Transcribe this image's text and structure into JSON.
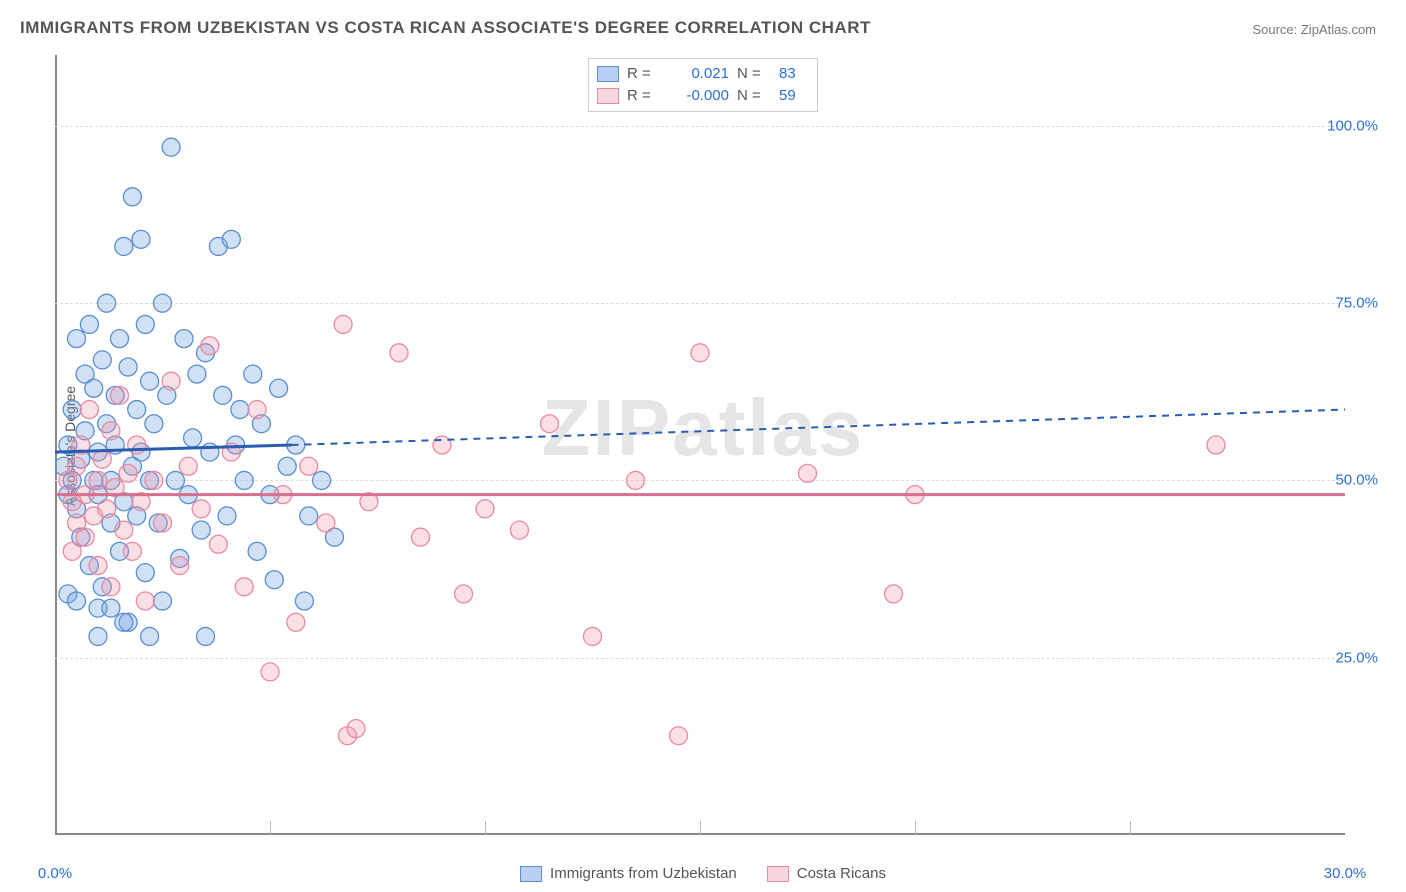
{
  "title": "IMMIGRANTS FROM UZBEKISTAN VS COSTA RICAN ASSOCIATE'S DEGREE CORRELATION CHART",
  "source": "Source: ZipAtlas.com",
  "watermark": "ZIPatlas",
  "y_axis_label": "Associate's Degree",
  "chart": {
    "type": "scatter",
    "xlim": [
      0,
      30
    ],
    "ylim": [
      0,
      110
    ],
    "x_ticks": [
      {
        "value": 0,
        "label": "0.0%"
      },
      {
        "value": 30,
        "label": "30.0%"
      }
    ],
    "x_minor_ticks": [
      5,
      10,
      15,
      20,
      25
    ],
    "y_ticks": [
      {
        "value": 25,
        "label": "25.0%"
      },
      {
        "value": 50,
        "label": "50.0%"
      },
      {
        "value": 75,
        "label": "75.0%"
      },
      {
        "value": 100,
        "label": "100.0%"
      }
    ],
    "background_color": "#ffffff",
    "grid_color": "#dddddd",
    "axis_color": "#888888",
    "tick_label_color": "#2a6fd6",
    "title_color": "#555555",
    "marker_radius": 9,
    "marker_stroke_width": 1.3,
    "series": [
      {
        "name": "Immigrants from Uzbekistan",
        "fill_color": "rgba(120,165,225,0.35)",
        "stroke_color": "#5a8ed0",
        "R": "0.021",
        "N": "83",
        "trend": {
          "y_start": 54,
          "y_end_solid_x": 5.5,
          "y_end_solid": 55,
          "y_end_dash": 60,
          "solid_color": "#2a5db0",
          "dash_color": "#2a5db0"
        },
        "points": [
          [
            0.2,
            52
          ],
          [
            0.3,
            48
          ],
          [
            0.3,
            55
          ],
          [
            0.4,
            60
          ],
          [
            0.4,
            50
          ],
          [
            0.5,
            70
          ],
          [
            0.5,
            46
          ],
          [
            0.6,
            53
          ],
          [
            0.6,
            42
          ],
          [
            0.7,
            65
          ],
          [
            0.7,
            57
          ],
          [
            0.8,
            72
          ],
          [
            0.8,
            38
          ],
          [
            0.9,
            63
          ],
          [
            0.9,
            50
          ],
          [
            1.0,
            54
          ],
          [
            1.0,
            48
          ],
          [
            1.1,
            67
          ],
          [
            1.1,
            35
          ],
          [
            1.2,
            58
          ],
          [
            1.2,
            75
          ],
          [
            1.3,
            50
          ],
          [
            1.3,
            44
          ],
          [
            1.4,
            62
          ],
          [
            1.4,
            55
          ],
          [
            1.5,
            70
          ],
          [
            1.5,
            40
          ],
          [
            1.6,
            83
          ],
          [
            1.6,
            47
          ],
          [
            1.7,
            66
          ],
          [
            1.7,
            30
          ],
          [
            1.8,
            52
          ],
          [
            1.8,
            90
          ],
          [
            1.9,
            60
          ],
          [
            1.9,
            45
          ],
          [
            2.0,
            84
          ],
          [
            2.0,
            54
          ],
          [
            2.1,
            72
          ],
          [
            2.1,
            37
          ],
          [
            2.2,
            64
          ],
          [
            2.2,
            50
          ],
          [
            2.3,
            58
          ],
          [
            2.4,
            44
          ],
          [
            2.5,
            75
          ],
          [
            2.5,
            33
          ],
          [
            2.6,
            62
          ],
          [
            2.7,
            97
          ],
          [
            2.8,
            50
          ],
          [
            2.9,
            39
          ],
          [
            3.0,
            70
          ],
          [
            3.1,
            48
          ],
          [
            3.2,
            56
          ],
          [
            3.3,
            65
          ],
          [
            3.4,
            43
          ],
          [
            3.5,
            68
          ],
          [
            3.6,
            54
          ],
          [
            3.8,
            83
          ],
          [
            3.9,
            62
          ],
          [
            4.0,
            45
          ],
          [
            4.1,
            84
          ],
          [
            4.2,
            55
          ],
          [
            4.3,
            60
          ],
          [
            4.4,
            50
          ],
          [
            4.6,
            65
          ],
          [
            4.7,
            40
          ],
          [
            4.8,
            58
          ],
          [
            5.0,
            48
          ],
          [
            5.1,
            36
          ],
          [
            5.2,
            63
          ],
          [
            5.4,
            52
          ],
          [
            5.6,
            55
          ],
          [
            5.8,
            33
          ],
          [
            5.9,
            45
          ],
          [
            6.2,
            50
          ],
          [
            6.5,
            42
          ],
          [
            0.3,
            34
          ],
          [
            0.5,
            33
          ],
          [
            1.0,
            32
          ],
          [
            1.3,
            32
          ],
          [
            1.6,
            30
          ],
          [
            1.0,
            28
          ],
          [
            2.2,
            28
          ],
          [
            3.5,
            28
          ]
        ]
      },
      {
        "name": "Costa Ricans",
        "fill_color": "rgba(240,150,170,0.3)",
        "stroke_color": "#e88aa0",
        "R": "-0.000",
        "N": "59",
        "trend": {
          "y_start": 48,
          "y_end_solid_x": 30,
          "y_end_solid": 48,
          "y_end_dash": 48,
          "solid_color": "#d6708c",
          "dash_color": "#d6708c"
        },
        "points": [
          [
            0.3,
            50
          ],
          [
            0.4,
            47
          ],
          [
            0.5,
            52
          ],
          [
            0.5,
            44
          ],
          [
            0.6,
            55
          ],
          [
            0.7,
            48
          ],
          [
            0.7,
            42
          ],
          [
            0.8,
            60
          ],
          [
            0.9,
            45
          ],
          [
            1.0,
            50
          ],
          [
            1.0,
            38
          ],
          [
            1.1,
            53
          ],
          [
            1.2,
            46
          ],
          [
            1.3,
            57
          ],
          [
            1.3,
            35
          ],
          [
            1.4,
            49
          ],
          [
            1.5,
            62
          ],
          [
            1.6,
            43
          ],
          [
            1.7,
            51
          ],
          [
            1.8,
            40
          ],
          [
            1.9,
            55
          ],
          [
            2.0,
            47
          ],
          [
            2.1,
            33
          ],
          [
            2.3,
            50
          ],
          [
            2.5,
            44
          ],
          [
            2.7,
            64
          ],
          [
            2.9,
            38
          ],
          [
            3.1,
            52
          ],
          [
            3.4,
            46
          ],
          [
            3.6,
            69
          ],
          [
            3.8,
            41
          ],
          [
            4.1,
            54
          ],
          [
            4.4,
            35
          ],
          [
            4.7,
            60
          ],
          [
            5.0,
            23
          ],
          [
            5.3,
            48
          ],
          [
            5.6,
            30
          ],
          [
            5.9,
            52
          ],
          [
            6.3,
            44
          ],
          [
            6.7,
            72
          ],
          [
            6.8,
            14
          ],
          [
            7.0,
            15
          ],
          [
            7.3,
            47
          ],
          [
            8.0,
            68
          ],
          [
            8.5,
            42
          ],
          [
            9.0,
            55
          ],
          [
            9.5,
            34
          ],
          [
            10.0,
            46
          ],
          [
            10.8,
            43
          ],
          [
            11.5,
            58
          ],
          [
            12.5,
            28
          ],
          [
            13.5,
            50
          ],
          [
            14.5,
            14
          ],
          [
            15.0,
            68
          ],
          [
            17.5,
            51
          ],
          [
            19.5,
            34
          ],
          [
            20.0,
            48
          ],
          [
            27.0,
            55
          ],
          [
            0.4,
            40
          ]
        ]
      }
    ]
  },
  "legend_top": {
    "R_label": "R =",
    "N_label": "N ="
  },
  "legend_bottom": [
    {
      "swatch": "blue",
      "label": "Immigrants from Uzbekistan"
    },
    {
      "swatch": "pink",
      "label": "Costa Ricans"
    }
  ]
}
